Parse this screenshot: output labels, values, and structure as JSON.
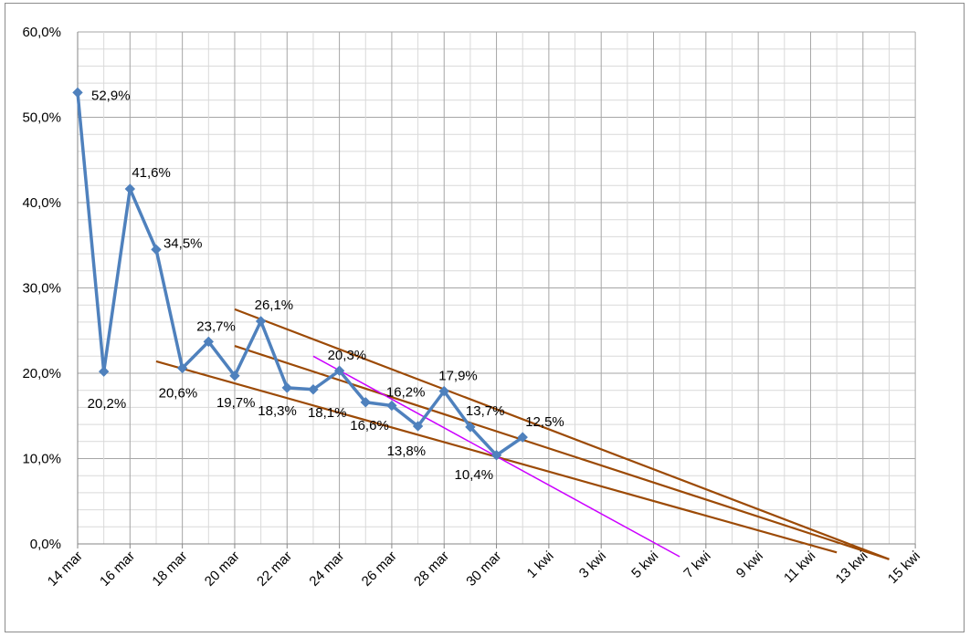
{
  "chart_data": {
    "type": "line",
    "title": "",
    "xlabel": "",
    "ylabel": "",
    "ylim": [
      0,
      60
    ],
    "yticks": [
      "0,0%",
      "10,0%",
      "20,0%",
      "30,0%",
      "40,0%",
      "50,0%",
      "60,0%"
    ],
    "xticks": [
      "14 mar",
      "16 mar",
      "18 mar",
      "20 mar",
      "22 mar",
      "24 mar",
      "26 mar",
      "28 mar",
      "30 mar",
      "1 kwi",
      "3 kwi",
      "5 kwi",
      "7 kwi",
      "9 kwi",
      "11 kwi",
      "13 kwi",
      "15 kwi"
    ],
    "grid": true,
    "legend": "none",
    "series": [
      {
        "color": "#4f81bd",
        "x": [
          "14 mar",
          "15 mar",
          "16 mar",
          "17 mar",
          "18 mar",
          "19 mar",
          "20 mar",
          "21 mar",
          "22 mar",
          "23 mar",
          "24 mar",
          "25 mar",
          "26 mar",
          "27 mar",
          "28 mar",
          "29 mar",
          "30 mar",
          "31 mar"
        ],
        "values": [
          52.9,
          20.2,
          41.6,
          34.5,
          20.6,
          23.7,
          19.7,
          26.1,
          18.3,
          18.1,
          20.3,
          16.6,
          16.2,
          13.8,
          17.9,
          13.7,
          10.4,
          12.5
        ],
        "labels": [
          "52,9%",
          "20,2%",
          "41,6%",
          "34,5%",
          "20,6%",
          "23,7%",
          "19,7%",
          "26,1%",
          "18,3%",
          "18,1%",
          "20,3%",
          "16,6%",
          "16,2%",
          "13,8%",
          "17,9%",
          "13,7%",
          "10,4%",
          "12,5%"
        ]
      }
    ],
    "trendlines": [
      {
        "color": "#9c4a06",
        "start": [
          "20 mar",
          27.5
        ],
        "end": [
          "15 kwi",
          -1.8
        ]
      },
      {
        "color": "#9c4a06",
        "start": [
          "20 mar",
          23.2
        ],
        "end": [
          "15 kwi",
          -1.8
        ]
      },
      {
        "color": "#9c4a06",
        "start": [
          "17 mar",
          21.4
        ],
        "end": [
          "13 kwi",
          -1.0
        ]
      },
      {
        "color": "#cc00ff",
        "start": [
          "23 mar",
          22.0
        ],
        "end": [
          "7 kwi",
          -1.5
        ]
      }
    ]
  }
}
